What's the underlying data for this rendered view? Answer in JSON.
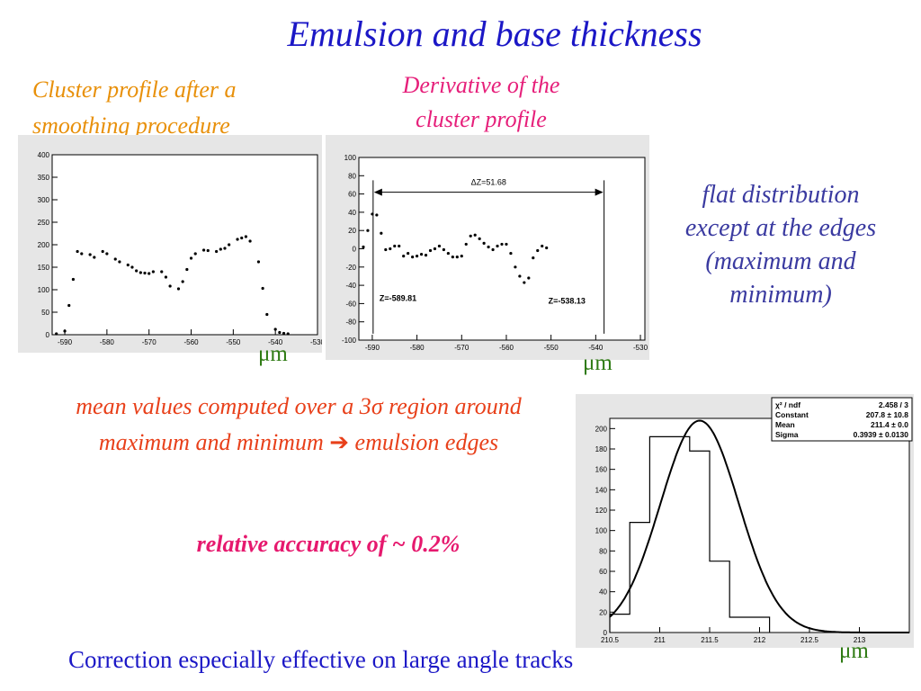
{
  "slide": {
    "title": "Emulsion and base thickness",
    "caption_left": [
      "Cluster profile after a",
      "smoothing procedure"
    ],
    "caption_mid": [
      "Derivative of the",
      "cluster profile"
    ],
    "note_right": [
      "flat distribution",
      "except at the edges",
      "(maximum and",
      "minimum)"
    ],
    "mean_line1": "mean values computed over a 3",
    "mean_sigma": "σ",
    "mean_line1_end": " region around",
    "mean_line2": "maximum and  minimum ",
    "mean_arrow": "➔",
    "mean_line2_end": " emulsion edges",
    "accuracy": "relative accuracy of ~ 0.2%",
    "correction": "Correction especially effective on large angle tracks",
    "unit": "μm"
  },
  "chart_data": [
    {
      "type": "scatter",
      "title": "",
      "xlim": [
        -593,
        -530
      ],
      "ylim": [
        0,
        400
      ],
      "x_ticks": [
        "-590",
        "-580",
        "-570",
        "-560",
        "-550",
        "-540",
        "-530"
      ],
      "y_ticks": [
        "0",
        "50",
        "100",
        "150",
        "200",
        "250",
        "300",
        "350",
        "400"
      ],
      "points": [
        [
          -592,
          2
        ],
        [
          -590,
          8
        ],
        [
          -589,
          65
        ],
        [
          -588,
          123
        ],
        [
          -587,
          185
        ],
        [
          -586,
          180
        ],
        [
          -584,
          178
        ],
        [
          -583,
          172
        ],
        [
          -581,
          185
        ],
        [
          -580,
          180
        ],
        [
          -578,
          168
        ],
        [
          -577,
          162
        ],
        [
          -575,
          155
        ],
        [
          -574,
          150
        ],
        [
          -573,
          142
        ],
        [
          -572,
          138
        ],
        [
          -571,
          137
        ],
        [
          -570,
          136
        ],
        [
          -569,
          140
        ],
        [
          -567,
          140
        ],
        [
          -566,
          128
        ],
        [
          -565,
          108
        ],
        [
          -563,
          102
        ],
        [
          -562,
          118
        ],
        [
          -561,
          145
        ],
        [
          -560,
          170
        ],
        [
          -559,
          180
        ],
        [
          -557,
          188
        ],
        [
          -556,
          187
        ],
        [
          -554,
          185
        ],
        [
          -553,
          190
        ],
        [
          -552,
          192
        ],
        [
          -551,
          200
        ],
        [
          -549,
          212
        ],
        [
          -548,
          215
        ],
        [
          -547,
          218
        ],
        [
          -546,
          208
        ],
        [
          -544,
          162
        ],
        [
          -543,
          103
        ],
        [
          -542,
          45
        ],
        [
          -540,
          12
        ],
        [
          -539,
          5
        ],
        [
          -538,
          3
        ],
        [
          -537,
          2
        ]
      ]
    },
    {
      "type": "scatter",
      "title": "",
      "xlim": [
        -593,
        -529
      ],
      "ylim": [
        -100,
        100
      ],
      "x_ticks": [
        "-590",
        "-580",
        "-570",
        "-560",
        "-550",
        "-540",
        "-530"
      ],
      "y_ticks": [
        "-100",
        "-80",
        "-60",
        "-40",
        "-20",
        "0",
        "20",
        "40",
        "60",
        "80",
        "100"
      ],
      "points": [
        [
          -592,
          2
        ],
        [
          -591,
          20
        ],
        [
          -590,
          38
        ],
        [
          -589,
          37
        ],
        [
          -588,
          17
        ],
        [
          -587,
          -1
        ],
        [
          -586,
          0
        ],
        [
          -585,
          3
        ],
        [
          -584,
          3
        ],
        [
          -583,
          -8
        ],
        [
          -582,
          -5
        ],
        [
          -581,
          -9
        ],
        [
          -580,
          -8
        ],
        [
          -579,
          -6
        ],
        [
          -578,
          -7
        ],
        [
          -577,
          -2
        ],
        [
          -576,
          0
        ],
        [
          -575,
          3
        ],
        [
          -574,
          -1
        ],
        [
          -573,
          -5
        ],
        [
          -572,
          -9
        ],
        [
          -571,
          -9
        ],
        [
          -570,
          -8
        ],
        [
          -569,
          5
        ],
        [
          -568,
          14
        ],
        [
          -567,
          15
        ],
        [
          -566,
          11
        ],
        [
          -565,
          6
        ],
        [
          -564,
          2
        ],
        [
          -563,
          -1
        ],
        [
          -562,
          3
        ],
        [
          -561,
          5
        ],
        [
          -560,
          5
        ],
        [
          -559,
          -5
        ],
        [
          -558,
          -20
        ],
        [
          -557,
          -30
        ],
        [
          -556,
          -37
        ],
        [
          -555,
          -32
        ],
        [
          -554,
          -10
        ],
        [
          -553,
          -2
        ],
        [
          -552,
          3
        ],
        [
          -551,
          1
        ]
      ],
      "annotations": {
        "delta": "ΔZ=51.68",
        "z_left": "Z=-589.81",
        "z_right": "Z=-538.13"
      },
      "markers_x": [
        -589.81,
        -538.13
      ]
    },
    {
      "type": "histogram",
      "title": "",
      "xlim": [
        210.5,
        213.5
      ],
      "ylim": [
        0,
        210
      ],
      "x_ticks": [
        "210.5",
        "211",
        "211.5",
        "212",
        "212.5",
        "213"
      ],
      "y_ticks": [
        "0",
        "20",
        "40",
        "60",
        "80",
        "100",
        "120",
        "140",
        "160",
        "180",
        "200"
      ],
      "bins": [
        {
          "lo": 210.5,
          "hi": 210.7,
          "count": 18
        },
        {
          "lo": 210.7,
          "hi": 210.9,
          "count": 108
        },
        {
          "lo": 210.9,
          "hi": 211.1,
          "count": 192
        },
        {
          "lo": 211.1,
          "hi": 211.3,
          "count": 192
        },
        {
          "lo": 211.3,
          "hi": 211.5,
          "count": 178
        },
        {
          "lo": 211.5,
          "hi": 211.7,
          "count": 70
        },
        {
          "lo": 211.7,
          "hi": 211.9,
          "count": 15
        },
        {
          "lo": 211.9,
          "hi": 212.1,
          "count": 15
        }
      ],
      "fit": {
        "constant": 207.8,
        "mean": 211.4,
        "sigma": 0.3939
      },
      "stats": [
        {
          "label": "χ² / ndf",
          "value": "2.458 / 3"
        },
        {
          "label": "Constant",
          "value": "207.8 ± 10.8"
        },
        {
          "label": "Mean",
          "value": "211.4 ± 0.0"
        },
        {
          "label": "Sigma",
          "value": "0.3939 ± 0.0130"
        }
      ]
    }
  ]
}
